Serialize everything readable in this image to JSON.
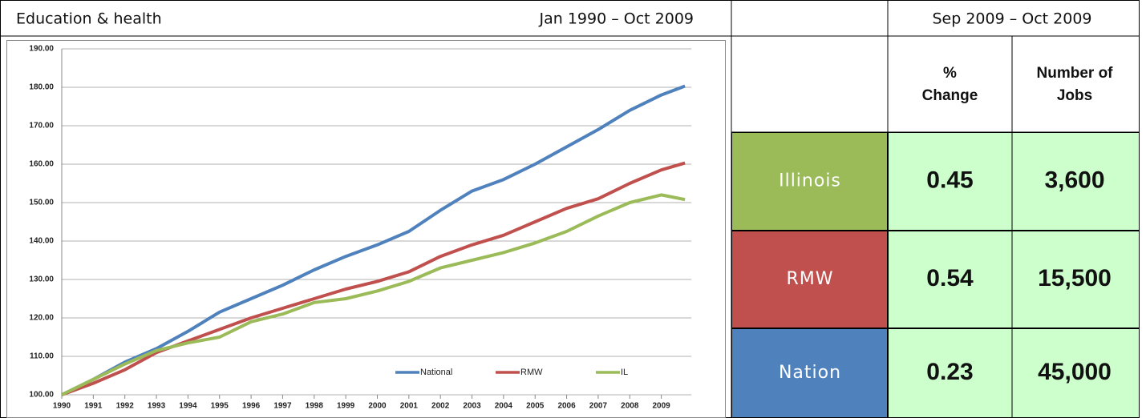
{
  "header": {
    "title": "Education & health",
    "period": "Jan 1990 – Oct 2009",
    "table_period": "Sep 2009 – Oct 2009"
  },
  "chart_data": {
    "type": "line",
    "x": [
      1990,
      1991,
      1992,
      1993,
      1994,
      1995,
      1996,
      1997,
      1998,
      1999,
      2000,
      2001,
      2002,
      2003,
      2004,
      2005,
      2006,
      2007,
      2008,
      2009,
      2009.75
    ],
    "series": [
      {
        "name": "National",
        "color": "#4f81bd",
        "values": [
          100,
          104,
          108.5,
          112,
          116.5,
          121.5,
          125,
          128.5,
          132.5,
          136,
          139,
          142.5,
          148,
          153,
          156,
          160,
          164.5,
          169,
          174,
          178,
          180.3
        ]
      },
      {
        "name": "RMW",
        "color": "#c0504d",
        "values": [
          100,
          103,
          106.5,
          111,
          114,
          117,
          120,
          122.5,
          125,
          127.5,
          129.5,
          132,
          136,
          139,
          141.5,
          145,
          148.5,
          151,
          155,
          158.5,
          160.3
        ]
      },
      {
        "name": "IL",
        "color": "#9bbb59",
        "values": [
          100,
          104,
          108,
          111.5,
          113.5,
          115,
          119,
          121,
          124,
          125,
          127,
          129.5,
          133,
          135,
          137,
          139.5,
          142.5,
          146.5,
          150,
          152,
          150.8
        ]
      }
    ],
    "xlim": [
      1990,
      2009.95
    ],
    "xticks": [
      1990,
      1991,
      1992,
      1993,
      1994,
      1995,
      1996,
      1997,
      1998,
      1999,
      2000,
      2001,
      2002,
      2003,
      2004,
      2005,
      2006,
      2007,
      2008,
      2009
    ],
    "ylim": [
      100,
      190
    ],
    "yticks": [
      {
        "value": 100,
        "label": "100.00"
      },
      {
        "value": 110,
        "label": "110.00"
      },
      {
        "value": 120,
        "label": "120.00"
      },
      {
        "value": 130,
        "label": "130.00"
      },
      {
        "value": 140,
        "label": "140.00"
      },
      {
        "value": 150,
        "label": "150.00"
      },
      {
        "value": 160,
        "label": "160.00"
      },
      {
        "value": 170,
        "label": "170.00"
      },
      {
        "value": 180,
        "label": "180.00"
      },
      {
        "value": 190,
        "label": "190.00"
      }
    ],
    "grid": true,
    "legend": "bottom"
  },
  "table": {
    "columns": [
      [
        "%",
        "Change"
      ],
      [
        "Number of",
        "Jobs"
      ]
    ],
    "rows": [
      {
        "region": "Illinois",
        "color": "#9bbb59",
        "pct": "0.45",
        "jobs": "3,600"
      },
      {
        "region": "RMW",
        "color": "#c0504d",
        "pct": "0.54",
        "jobs": "15,500"
      },
      {
        "region": "Nation",
        "color": "#4f81bd",
        "pct": "0.23",
        "jobs": "45,000"
      }
    ],
    "cell_color": "#ccffcc"
  }
}
